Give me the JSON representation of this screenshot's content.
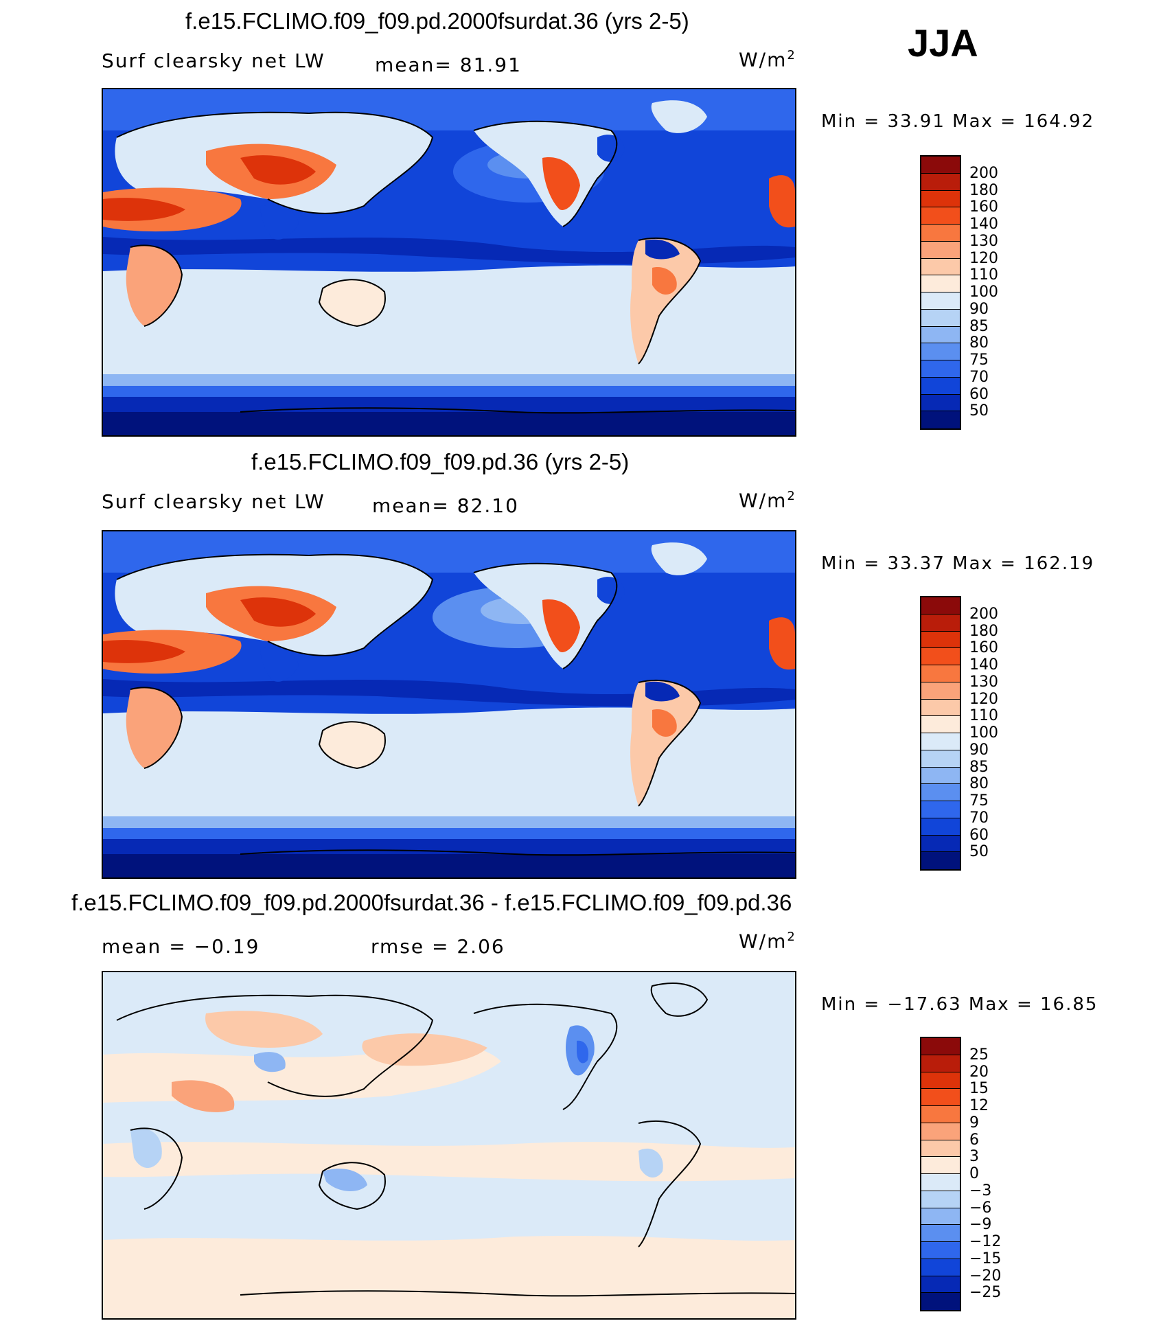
{
  "season": "JJA",
  "panels": [
    {
      "title": "f.e15.FCLIMO.f09_f09.pd.2000fsurdat.36 (yrs 2-5)",
      "variable": "Surf  clearsky  net  LW",
      "stat1": "mean=   81.91",
      "unit_base": "W/m",
      "unit_exp": "2",
      "minmax": "Min  =    33.91  Max  =  164.92",
      "colorbar": {
        "labels": [
          "200",
          "180",
          "160",
          "140",
          "130",
          "120",
          "110",
          "100",
          "90",
          "85",
          "80",
          "75",
          "70",
          "60",
          "50"
        ],
        "colors": [
          "#8b0a0a",
          "#b91d0a",
          "#dd330a",
          "#f24f1b",
          "#f8773f",
          "#faa37a",
          "#fcc9a9",
          "#fdebdb",
          "#dbeaf8",
          "#b6d3f5",
          "#8eb6f3",
          "#5b8ff0",
          "#2f67ec",
          "#1145d9",
          "#0629b5",
          "#00127c"
        ]
      }
    },
    {
      "title": "f.e15.FCLIMO.f09_f09.pd.36 (yrs 2-5)",
      "variable": "Surf  clearsky  net  LW",
      "stat1": "mean=   82.10",
      "unit_base": "W/m",
      "unit_exp": "2",
      "minmax": "Min  =    33.37  Max  =  162.19",
      "colorbar": {
        "labels": [
          "200",
          "180",
          "160",
          "140",
          "130",
          "120",
          "110",
          "100",
          "90",
          "85",
          "80",
          "75",
          "70",
          "60",
          "50"
        ],
        "colors": [
          "#8b0a0a",
          "#b91d0a",
          "#dd330a",
          "#f24f1b",
          "#f8773f",
          "#faa37a",
          "#fcc9a9",
          "#fdebdb",
          "#dbeaf8",
          "#b6d3f5",
          "#8eb6f3",
          "#5b8ff0",
          "#2f67ec",
          "#1145d9",
          "#0629b5",
          "#00127c"
        ]
      }
    },
    {
      "title": "f.e15.FCLIMO.f09_f09.pd.2000fsurdat.36 - f.e15.FCLIMO.f09_f09.pd.36",
      "stat1": "mean  =    −0.19",
      "stat2": "rmse  =     2.06",
      "unit_base": "W/m",
      "unit_exp": "2",
      "minmax": "Min  = −17.63  Max  =    16.85",
      "colorbar": {
        "labels": [
          "25",
          "20",
          "15",
          "12",
          "9",
          "6",
          "3",
          "0",
          "−3",
          "−6",
          "−9",
          "−12",
          "−15",
          "−20",
          "−25"
        ],
        "colors": [
          "#8b0a0a",
          "#b91d0a",
          "#dd330a",
          "#f24f1b",
          "#f8773f",
          "#faa37a",
          "#fcc9a9",
          "#fdebdb",
          "#dbeaf8",
          "#b6d3f5",
          "#8eb6f3",
          "#5b8ff0",
          "#2f67ec",
          "#1145d9",
          "#0629b5",
          "#00127c"
        ]
      }
    }
  ]
}
